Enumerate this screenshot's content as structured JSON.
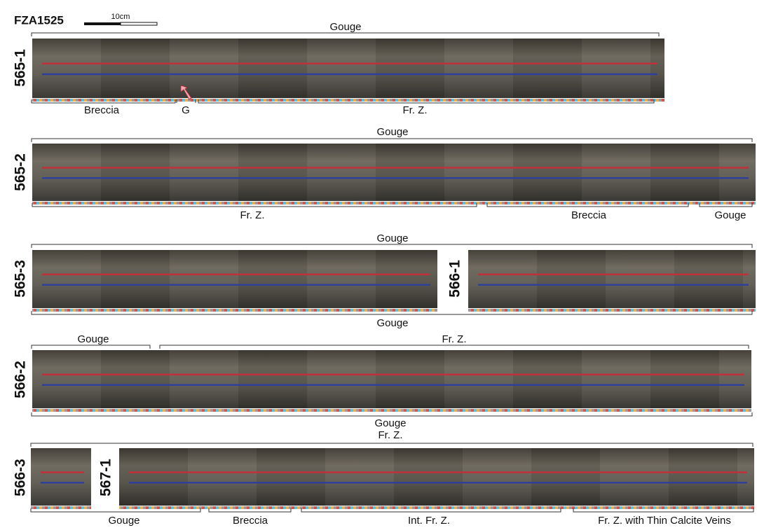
{
  "header": {
    "title": "FZA1525",
    "scale": "10cm"
  },
  "rows": [
    {
      "cores": [
        "565-1"
      ],
      "top": [
        "Gouge"
      ],
      "bottom": [
        "Breccia",
        "G",
        "Fr. Z."
      ]
    },
    {
      "cores": [
        "565-2"
      ],
      "top": [
        "Gouge"
      ],
      "bottom": [
        "Fr. Z.",
        "Breccia",
        "Gouge"
      ]
    },
    {
      "cores": [
        "565-3",
        "566-1"
      ],
      "top": [
        "Gouge"
      ],
      "bottom": [
        "Gouge"
      ]
    },
    {
      "cores": [
        "566-2"
      ],
      "top": [
        "Gouge",
        "Fr. Z."
      ],
      "bottom": [
        "Gouge"
      ]
    },
    {
      "cores": [
        "566-3",
        "567-1"
      ],
      "top": [
        "Fr. Z."
      ],
      "bottom": [
        "Gouge",
        "Breccia",
        "Int. Fr. Z.",
        "Fr. Z. with Thin Calcite Veins"
      ]
    }
  ]
}
